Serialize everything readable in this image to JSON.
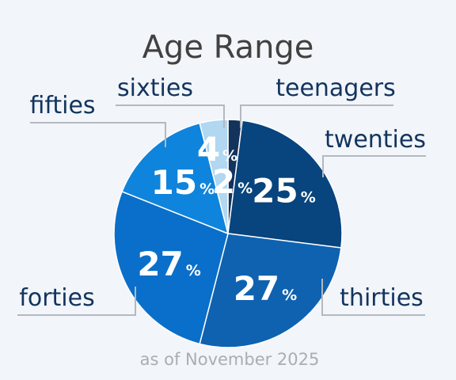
{
  "chart_data": {
    "type": "pie",
    "title": "Age Range",
    "note": "as of November 2025",
    "unit": "%",
    "start": "12 o'clock, clockwise",
    "slices": [
      {
        "label": "teenagers",
        "value": 2,
        "color": "#13325c"
      },
      {
        "label": "twenties",
        "value": 25,
        "color": "#08447d"
      },
      {
        "label": "thirties",
        "value": 27,
        "color": "#0f62b0"
      },
      {
        "label": "forties",
        "value": 27,
        "color": "#0a6fca"
      },
      {
        "label": "fifties",
        "value": 15,
        "color": "#0f84dc"
      },
      {
        "label": "sixties",
        "value": 4,
        "color": "#b1d7f1"
      }
    ]
  }
}
